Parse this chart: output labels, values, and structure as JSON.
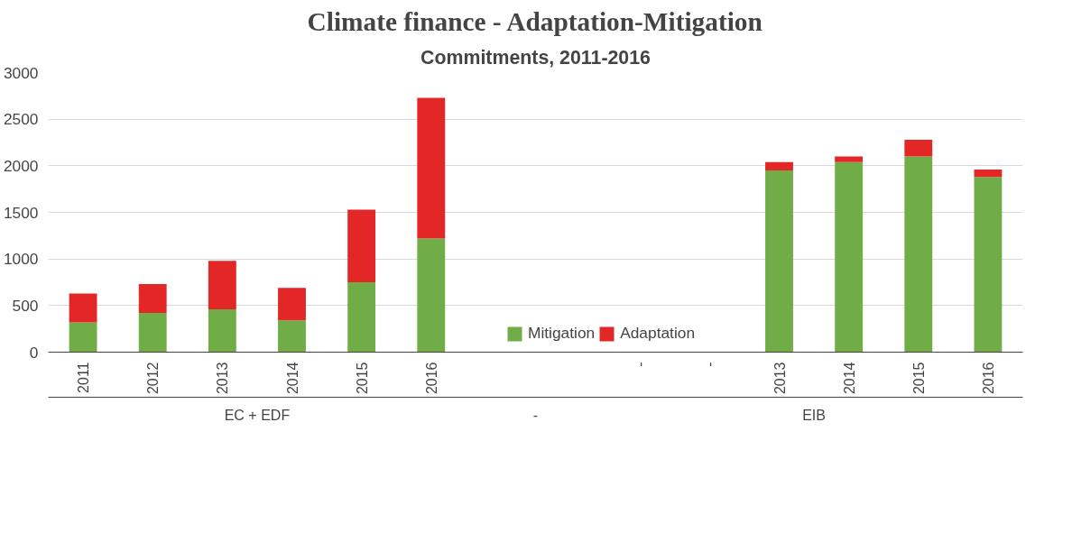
{
  "chart_data": {
    "type": "bar",
    "title": "Climate finance - Adaptation-Mitigation",
    "subtitle": "Commitments, 2011-2016",
    "categories": [
      "2011",
      "2012",
      "2013",
      "2014",
      "2015",
      "2016",
      null,
      null,
      "-",
      "-",
      "2013",
      "2014",
      "2015",
      "2016"
    ],
    "stacked": true,
    "series": [
      {
        "name": "Mitigation",
        "color": "#70ad47",
        "values": [
          320,
          420,
          460,
          340,
          750,
          1220,
          null,
          null,
          null,
          null,
          1950,
          2040,
          2100,
          1880
        ]
      },
      {
        "name": "Adaptation",
        "color": "#e32626",
        "values": [
          310,
          310,
          520,
          350,
          780,
          1510,
          null,
          null,
          null,
          null,
          90,
          60,
          180,
          80
        ]
      }
    ],
    "ylim": [
      0,
      3000
    ],
    "yticks": [
      0,
      500,
      1000,
      1500,
      2000,
      2500,
      3000
    ],
    "grid": "y",
    "legend": "bottom",
    "annotations": [
      "EC + EDF",
      "-",
      "EIB"
    ]
  }
}
